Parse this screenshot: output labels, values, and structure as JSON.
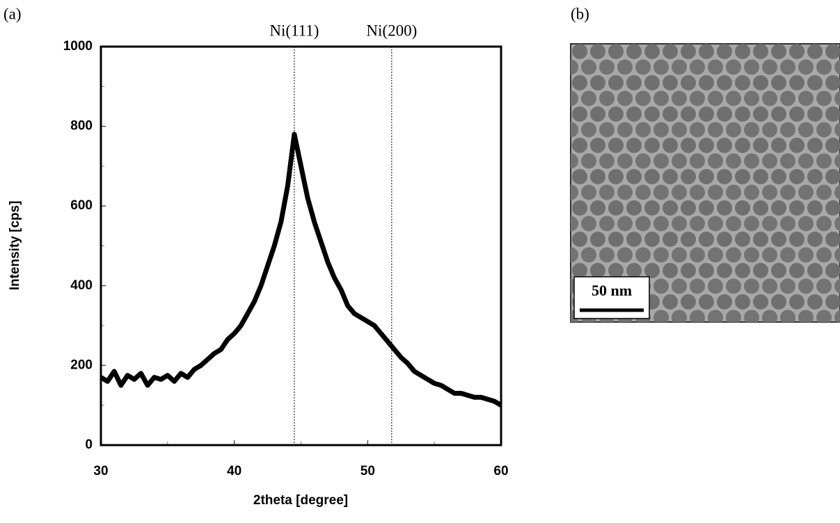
{
  "chart_data": {
    "type": "line",
    "panel_label": "(a)",
    "x_label": "2theta [degree]",
    "y_label": "Intensity [cps]",
    "x": [
      30,
      30.5,
      31,
      31.5,
      32,
      32.5,
      33,
      33.5,
      34,
      34.5,
      35,
      35.5,
      36,
      36.5,
      37,
      37.5,
      38,
      38.5,
      39,
      39.5,
      40,
      40.5,
      41,
      41.5,
      42,
      42.5,
      43,
      43.5,
      44,
      44.5,
      45,
      45.5,
      46,
      46.5,
      47,
      47.5,
      48,
      48.5,
      49,
      49.5,
      50,
      50.5,
      51,
      51.5,
      52,
      52.5,
      53,
      53.5,
      54,
      54.5,
      55,
      55.5,
      56,
      56.5,
      57,
      57.5,
      58,
      58.5,
      59,
      59.5,
      60
    ],
    "values": [
      170,
      160,
      185,
      150,
      175,
      165,
      180,
      150,
      170,
      165,
      175,
      160,
      180,
      170,
      190,
      200,
      215,
      230,
      240,
      265,
      280,
      300,
      330,
      360,
      400,
      450,
      500,
      560,
      650,
      780,
      700,
      620,
      560,
      510,
      460,
      420,
      390,
      350,
      330,
      320,
      310,
      300,
      280,
      260,
      240,
      220,
      205,
      185,
      175,
      165,
      155,
      150,
      140,
      130,
      130,
      125,
      120,
      120,
      115,
      110,
      100
    ],
    "color": "#000000",
    "xlim": [
      30,
      60
    ],
    "xticks": [
      30,
      40,
      50,
      60
    ],
    "xminorticks": [
      35,
      45,
      55
    ],
    "ylim": [
      0,
      1000
    ],
    "yticks": [
      0,
      200,
      400,
      600,
      800,
      1000
    ],
    "yminorticks": [
      100,
      300,
      500,
      700,
      900
    ],
    "annotations": [
      {
        "x": 44.5,
        "label": "Ni(111)"
      },
      {
        "x": 51.8,
        "label": "Ni(200)"
      }
    ]
  },
  "image_panel": {
    "label": "(b)",
    "scale_bar": "50 nm"
  }
}
